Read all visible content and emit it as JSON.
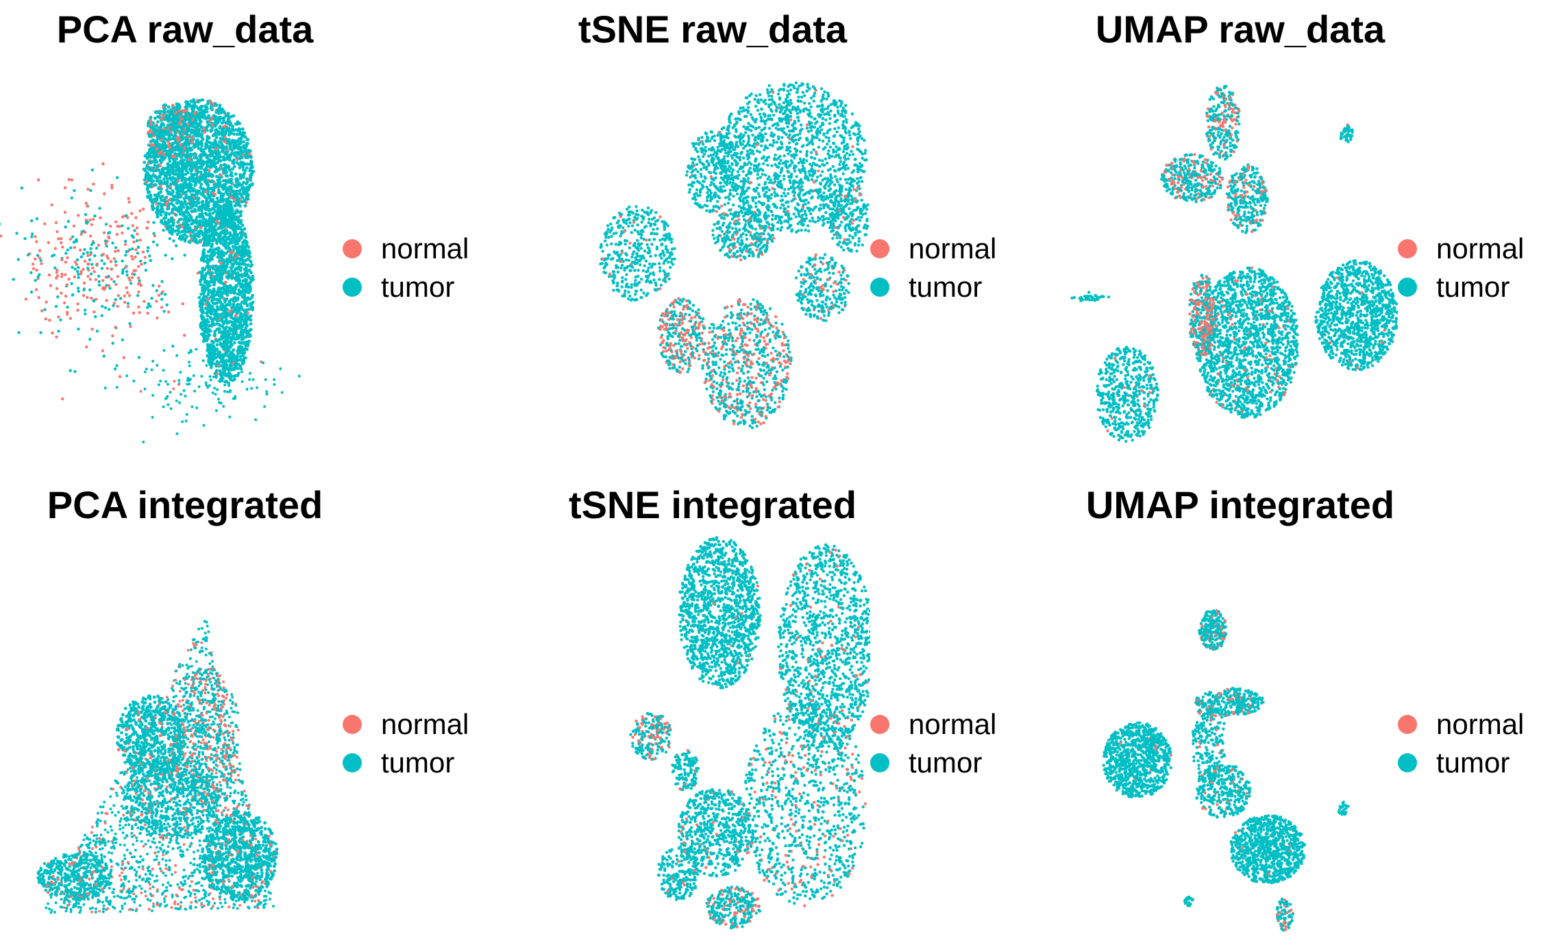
{
  "colors": {
    "normal": "#F8766D",
    "tumor": "#00BFC4"
  },
  "legend": [
    {
      "key": "normal",
      "label": "normal"
    },
    {
      "key": "tumor",
      "label": "tumor"
    }
  ],
  "chart_data": [
    {
      "type": "scatter",
      "title": "PCA raw_data",
      "xlabel": "",
      "ylabel": "",
      "grid": false,
      "legend_position": "right",
      "series": [
        "normal",
        "tumor"
      ]
    },
    {
      "type": "scatter",
      "title": "tSNE raw_data",
      "xlabel": "",
      "ylabel": "",
      "grid": false,
      "legend_position": "right",
      "series": [
        "normal",
        "tumor"
      ]
    },
    {
      "type": "scatter",
      "title": "UMAP raw_data",
      "xlabel": "",
      "ylabel": "",
      "grid": false,
      "legend_position": "right",
      "series": [
        "normal",
        "tumor"
      ]
    },
    {
      "type": "scatter",
      "title": "PCA integrated",
      "xlabel": "",
      "ylabel": "",
      "grid": false,
      "legend_position": "right",
      "series": [
        "normal",
        "tumor"
      ]
    },
    {
      "type": "scatter",
      "title": "tSNE integrated",
      "xlabel": "",
      "ylabel": "",
      "grid": false,
      "legend_position": "right",
      "series": [
        "normal",
        "tumor"
      ]
    },
    {
      "type": "scatter",
      "title": "UMAP integrated",
      "xlabel": "",
      "ylabel": "",
      "grid": false,
      "legend_position": "right",
      "series": [
        "normal",
        "tumor"
      ]
    }
  ]
}
